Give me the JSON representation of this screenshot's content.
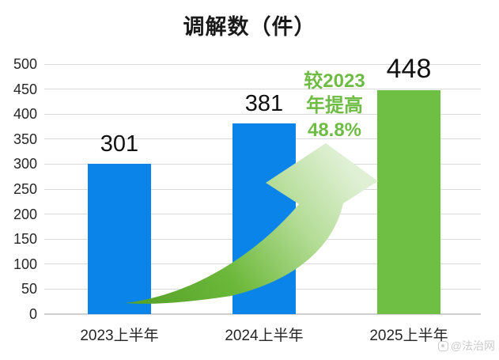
{
  "title": "调解数（件）",
  "watermark": {
    "text": "@法治网"
  },
  "annotation": {
    "lines": [
      "较2023",
      "年提高",
      "48.8%"
    ]
  },
  "colors": {
    "bar_blue": "#0a84e8",
    "bar_green": "#70bf45",
    "annotation_green": "#6fbc45",
    "gridline": "#dadada",
    "axis_text": "#262626",
    "arrow_tail": "#54a028",
    "arrow_mid": "#6cb83a",
    "arrow_light": "#b3dc95",
    "arrow_head": "#dff0d4"
  },
  "chart_data": {
    "type": "bar",
    "title": "调解数（件）",
    "categories": [
      "2023上半年",
      "2024上半年",
      "2025上半年"
    ],
    "values": [
      301,
      381,
      448
    ],
    "bar_colors": [
      "#0a84e8",
      "#0a84e8",
      "#70bf45"
    ],
    "xlabel": "",
    "ylabel": "",
    "ylim": [
      0,
      500
    ],
    "ytick_step": 50,
    "grid": true,
    "legend": false,
    "annotation": "较2023年提高48.8%"
  }
}
